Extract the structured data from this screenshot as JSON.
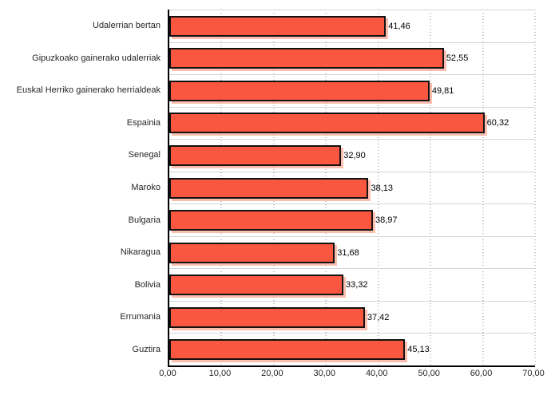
{
  "chart_data": {
    "type": "bar",
    "orientation": "horizontal",
    "title": "",
    "xlabel": "",
    "ylabel": "",
    "categories": [
      "Udalerrian bertan",
      "Gipuzkoako gainerako udalerriak",
      "Euskal Herriko gainerako herrialdeak",
      "Espainia",
      "Senegal",
      "Maroko",
      "Bulgaria",
      "Nikaragua",
      "Bolivia",
      "Errumania",
      "Guztira"
    ],
    "values": [
      41.46,
      52.55,
      49.81,
      60.32,
      32.9,
      38.13,
      38.97,
      31.68,
      33.32,
      37.42,
      45.13
    ],
    "value_labels": [
      "41,46",
      "52,55",
      "49,81",
      "60,32",
      "32,90",
      "38,13",
      "38,97",
      "31,68",
      "33,32",
      "37,42",
      "45,13"
    ],
    "xlim": [
      0,
      70
    ],
    "x_ticks": [
      "0,00",
      "10,00",
      "20,00",
      "30,00",
      "40,00",
      "50,00",
      "60,00",
      "70,00"
    ],
    "grid": "vertical-dotted",
    "legend": "none",
    "bar_color": "#FA5740",
    "bar_border_color": "#121212",
    "bar_shadow_color": "rgba(249,137,109,0.55)",
    "gridline_color": "#8c8c8c",
    "row_line_color": "#d6d6d6",
    "axis_color": "#000000",
    "text_color": "#262626"
  }
}
